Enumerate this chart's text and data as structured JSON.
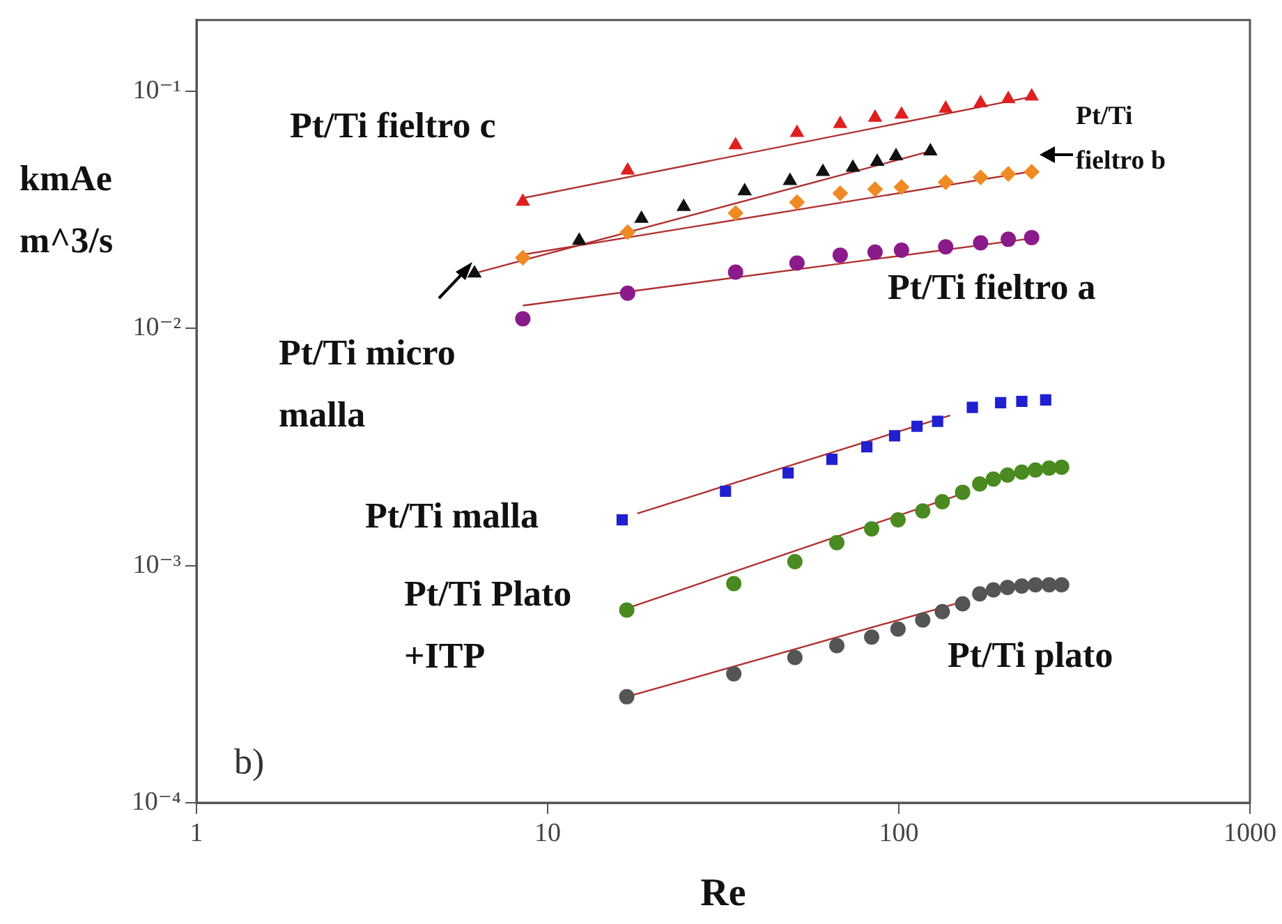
{
  "chart_data": {
    "type": "scatter",
    "xlabel": "Re",
    "ylabel": "kmAe m^3/s",
    "log": "xy",
    "grid": false,
    "legend": false,
    "xlim": [
      1,
      1000
    ],
    "xticks": [
      1,
      10,
      100,
      1000
    ],
    "ylim": [
      0.0001,
      0.2
    ],
    "yticks": [
      {
        "value": 0.0001,
        "label": "10⁻⁴"
      },
      {
        "value": 0.001,
        "label": "10⁻³"
      },
      {
        "value": 0.01,
        "label": "10⁻²"
      },
      {
        "value": 0.1,
        "label": "10⁻¹"
      }
    ],
    "annotations": [
      "b)"
    ],
    "series": [
      {
        "name": "Pt/Ti fieltro c",
        "color": "#e02020",
        "marker": "triangle",
        "x": [
          8.5,
          16.9,
          34.3,
          51.3,
          68.1,
          85.6,
          101.8,
          136,
          171,
          205,
          239
        ],
        "values": [
          0.0343,
          0.0465,
          0.0594,
          0.067,
          0.073,
          0.0776,
          0.08,
          0.0847,
          0.0893,
          0.093,
          0.0954
        ]
      },
      {
        "name": "Pt/Ti micro malla",
        "color": "#111111",
        "marker": "triangle",
        "x": [
          6.19,
          12.3,
          18.5,
          24.4,
          36.4,
          49,
          60.8,
          74,
          86.8,
          98.2,
          123
        ],
        "values": [
          0.0171,
          0.0235,
          0.0291,
          0.0326,
          0.038,
          0.042,
          0.0458,
          0.0477,
          0.0506,
          0.0534,
          0.056
        ]
      },
      {
        "name": "Pt/Ti fieltro b",
        "color": "#f08a24",
        "marker": "diamond",
        "x": [
          8.5,
          16.9,
          34.3,
          51.3,
          68.1,
          85.6,
          101.8,
          136,
          171,
          205,
          239
        ],
        "values": [
          0.0199,
          0.0255,
          0.0307,
          0.0341,
          0.0372,
          0.0387,
          0.0395,
          0.0414,
          0.0434,
          0.0449,
          0.0458
        ]
      },
      {
        "name": "Pt/Ti fieltro a",
        "color": "#8b1a8b",
        "marker": "circle",
        "x": [
          8.5,
          16.9,
          34.3,
          51.3,
          68.1,
          85.6,
          101.8,
          136,
          171,
          205,
          239
        ],
        "values": [
          0.011,
          0.0141,
          0.0173,
          0.0189,
          0.0204,
          0.021,
          0.0214,
          0.0221,
          0.023,
          0.0238,
          0.0242
        ]
      },
      {
        "name": "Pt/Ti malla",
        "color": "#2020d0",
        "marker": "square",
        "x": [
          16.3,
          32.1,
          48.4,
          64.5,
          81.1,
          97.3,
          112.7,
          129,
          162,
          195,
          224,
          262
        ],
        "values": [
          0.00156,
          0.00206,
          0.00246,
          0.00281,
          0.00317,
          0.00353,
          0.00387,
          0.00406,
          0.00465,
          0.00487,
          0.00493,
          0.005
        ]
      },
      {
        "name": "Pt/Ti Plato +ITP",
        "color": "#4a8a20",
        "marker": "circle",
        "x": [
          16.8,
          33.9,
          50.6,
          66.6,
          83.7,
          99.5,
          117,
          133,
          152,
          170,
          186,
          204,
          224,
          245,
          268,
          291
        ],
        "values": [
          0.00065,
          0.00084,
          0.00104,
          0.00125,
          0.00143,
          0.00156,
          0.0017,
          0.00186,
          0.00204,
          0.00221,
          0.00232,
          0.00241,
          0.00248,
          0.00253,
          0.00258,
          0.0026
        ]
      },
      {
        "name": "Pt/Ti plato",
        "color": "#555555",
        "marker": "circle",
        "x": [
          16.8,
          33.9,
          50.6,
          66.6,
          83.7,
          99.5,
          117,
          133,
          152,
          170,
          186,
          204,
          224,
          245,
          268,
          291
        ],
        "values": [
          0.00028,
          0.00035,
          0.00041,
          0.00046,
          0.0005,
          0.00054,
          0.00059,
          0.00064,
          0.00069,
          0.00076,
          0.00079,
          0.00081,
          0.00082,
          0.00083,
          0.00083,
          0.00083
        ]
      },
      {
        "type": "line",
        "color": "#b03030",
        "marker": "none",
        "x": [
          8.5,
          239
        ],
        "values": [
          0.0355,
          0.095
        ]
      },
      {
        "type": "line",
        "color": "#b03030",
        "marker": "none",
        "x": [
          6.2,
          123
        ],
        "values": [
          0.0171,
          0.056
        ]
      },
      {
        "type": "line",
        "color": "#b03030",
        "marker": "none",
        "x": [
          8.5,
          239
        ],
        "values": [
          0.0205,
          0.046
        ]
      },
      {
        "type": "line",
        "color": "#b03030",
        "marker": "none",
        "x": [
          8.5,
          239
        ],
        "values": [
          0.0125,
          0.024
        ]
      },
      {
        "type": "line",
        "color": "#b03030",
        "marker": "none",
        "x": [
          18,
          140
        ],
        "values": [
          0.00166,
          0.0043
        ]
      },
      {
        "type": "line",
        "color": "#b03030",
        "marker": "none",
        "x": [
          16.8,
          150
        ],
        "values": [
          0.00066,
          0.002
        ]
      },
      {
        "type": "line",
        "color": "#b03030",
        "marker": "none",
        "x": [
          16.8,
          150
        ],
        "values": [
          0.00028,
          0.0007
        ]
      }
    ]
  }
}
